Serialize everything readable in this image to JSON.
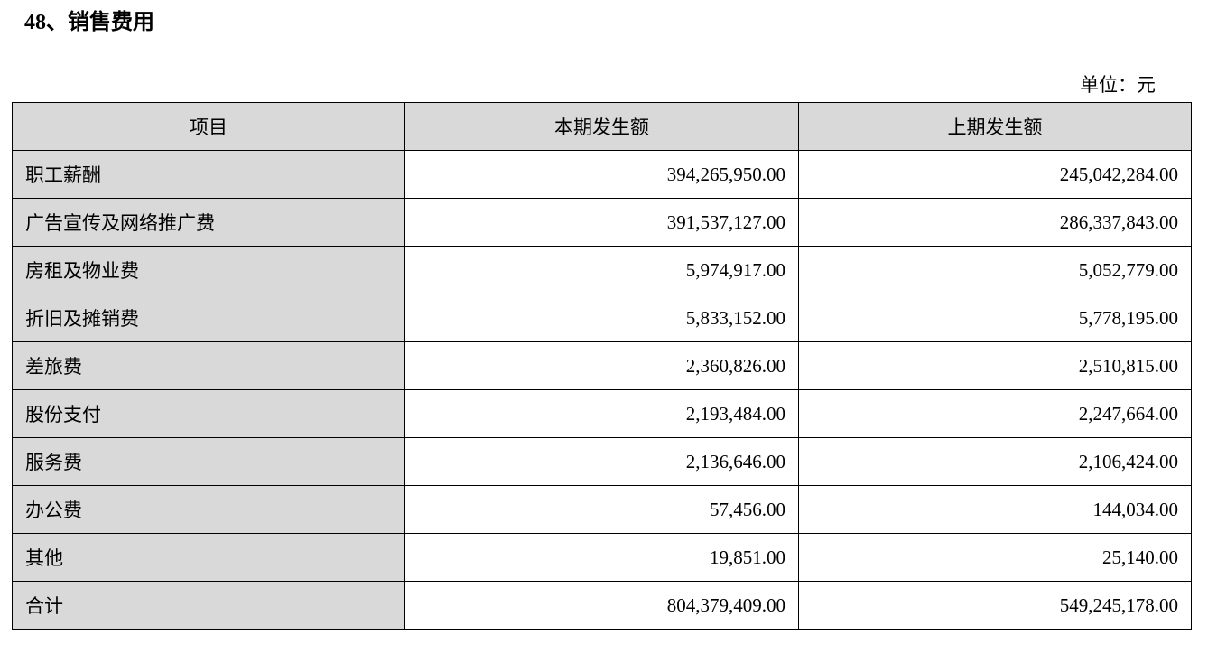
{
  "header": {
    "title": "48、销售费用",
    "unit": "单位：元"
  },
  "table": {
    "columns": [
      "项目",
      "本期发生额",
      "上期发生额"
    ],
    "rows": [
      [
        "职工薪酬",
        "394,265,950.00",
        "245,042,284.00"
      ],
      [
        "广告宣传及网络推广费",
        "391,537,127.00",
        "286,337,843.00"
      ],
      [
        "房租及物业费",
        "5,974,917.00",
        "5,052,779.00"
      ],
      [
        "折旧及摊销费",
        "5,833,152.00",
        "5,778,195.00"
      ],
      [
        "差旅费",
        "2,360,826.00",
        "2,510,815.00"
      ],
      [
        "股份支付",
        "2,193,484.00",
        "2,247,664.00"
      ],
      [
        "服务费",
        "2,136,646.00",
        "2,106,424.00"
      ],
      [
        "办公费",
        "57,456.00",
        "144,034.00"
      ],
      [
        "其他",
        "19,851.00",
        "25,140.00"
      ],
      [
        "合计",
        "804,379,409.00",
        "549,245,178.00"
      ]
    ]
  }
}
